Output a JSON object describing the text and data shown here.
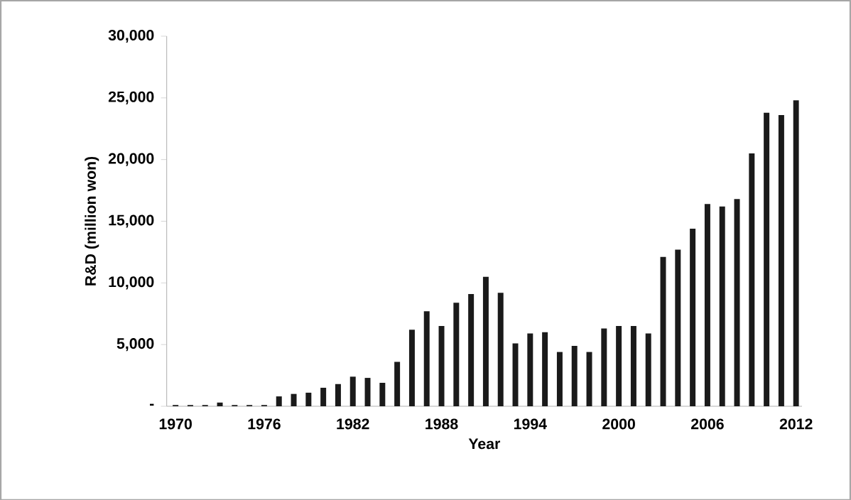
{
  "chart_data": {
    "type": "bar",
    "xlabel": "Year",
    "ylabel": "R&D (million won)",
    "categories": [
      "1970",
      null,
      null,
      null,
      null,
      null,
      "1976",
      null,
      null,
      null,
      null,
      null,
      "1982",
      null,
      null,
      null,
      null,
      null,
      "1988",
      null,
      null,
      null,
      null,
      null,
      "1994",
      null,
      null,
      null,
      null,
      null,
      "2000",
      null,
      null,
      null,
      null,
      null,
      "2006",
      null,
      null,
      null,
      null,
      null,
      "2012"
    ],
    "values": [
      100,
      100,
      100,
      300,
      100,
      100,
      100,
      800,
      1000,
      1100,
      1500,
      1800,
      2400,
      2300,
      1900,
      3600,
      6200,
      7700,
      6500,
      8400,
      9100,
      10500,
      9200,
      5100,
      5900,
      6000,
      4400,
      4900,
      4400,
      6300,
      6500,
      6500,
      5900,
      12100,
      12700,
      14400,
      16400,
      16200,
      16800,
      20500,
      23800,
      23600,
      24800
    ],
    "color": "#1a1a1a",
    "ylim": [
      0,
      30000
    ],
    "yticks": [
      {
        "value": 0,
        "label": "-"
      },
      {
        "value": 5000,
        "label": "5,000"
      },
      {
        "value": 10000,
        "label": "10,000"
      },
      {
        "value": 15000,
        "label": "15,000"
      },
      {
        "value": 20000,
        "label": "20,000"
      },
      {
        "value": 25000,
        "label": "25,000"
      },
      {
        "value": 30000,
        "label": "30,000"
      }
    ],
    "grid": false
  }
}
